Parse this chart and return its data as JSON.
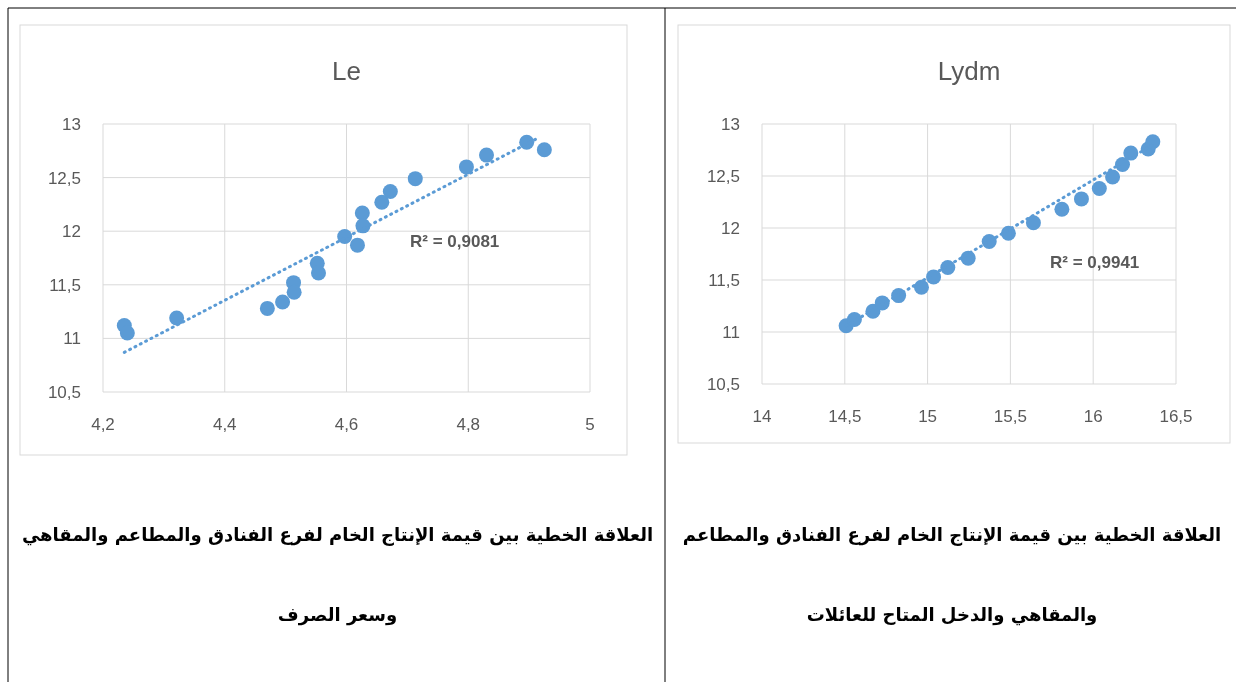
{
  "chart_data": [
    {
      "type": "scatter",
      "title": "Le",
      "grid": true,
      "xlim": [
        4.2,
        5
      ],
      "xticks": [
        {
          "value": 4.2,
          "label": "4,2"
        },
        {
          "value": 4.4,
          "label": "4,4"
        },
        {
          "value": 4.6,
          "label": "4,6"
        },
        {
          "value": 4.8,
          "label": "4,8"
        },
        5
      ],
      "ylim": [
        10.5,
        13
      ],
      "yticks": [
        {
          "value": 10.5,
          "label": "10,5"
        },
        11,
        {
          "value": 11.5,
          "label": "11,5"
        },
        12,
        {
          "value": 12.5,
          "label": "12,5"
        },
        13
      ],
      "series": [
        {
          "marker": "circle",
          "color": "#5b9bd5",
          "x": [
            4.235,
            4.24,
            4.321,
            4.47,
            4.495,
            4.513,
            4.514,
            4.552,
            4.554,
            4.597,
            4.618,
            4.626,
            4.627,
            4.658,
            4.672,
            4.713,
            4.797,
            4.83,
            4.896,
            4.925
          ],
          "values": [
            11.12,
            11.05,
            11.19,
            11.28,
            11.34,
            11.52,
            11.43,
            11.7,
            11.61,
            11.95,
            11.87,
            12.17,
            12.05,
            12.27,
            12.37,
            12.49,
            12.6,
            12.71,
            12.83,
            12.76
          ]
        },
        {
          "type": "line",
          "color": "#5b9bd5",
          "line_style": "dotted",
          "x": [
            4.235,
            4.915
          ],
          "values": [
            10.87,
            12.87
          ]
        }
      ],
      "annotations": [
        "R² = 0,9081",
        "العلاقة الخطية بين قيمة الإنتاج الخام لفرع الفنادق والمطاعم والمقاهي وسعر الصرف"
      ]
    },
    {
      "type": "scatter",
      "title": "Lydm",
      "grid": true,
      "xlim": [
        14,
        16.5
      ],
      "xticks": [
        14,
        {
          "value": 14.5,
          "label": "14,5"
        },
        15,
        {
          "value": 15.5,
          "label": "15,5"
        },
        16,
        {
          "value": 16.5,
          "label": "16,5"
        }
      ],
      "ylim": [
        10.5,
        13
      ],
      "yticks": [
        {
          "value": 10.5,
          "label": "10,5"
        },
        11,
        {
          "value": 11.5,
          "label": "11,5"
        },
        12,
        {
          "value": 12.5,
          "label": "12,5"
        },
        13
      ],
      "series": [
        {
          "marker": "circle",
          "color": "#5b9bd5",
          "x": [
            14.508,
            14.558,
            14.67,
            14.726,
            14.825,
            14.963,
            15.036,
            15.122,
            15.245,
            15.372,
            15.488,
            15.639,
            15.811,
            15.929,
            16.037,
            16.117,
            16.177,
            16.227,
            16.332,
            16.36
          ],
          "values": [
            11.06,
            11.12,
            11.2,
            11.28,
            11.35,
            11.43,
            11.53,
            11.62,
            11.71,
            11.87,
            11.95,
            12.05,
            12.18,
            12.28,
            12.38,
            12.49,
            12.61,
            12.72,
            12.76,
            12.83
          ]
        },
        {
          "type": "line",
          "color": "#5b9bd5",
          "line_style": "dotted",
          "x": [
            14.508,
            16.36
          ],
          "values": [
            11.06,
            12.8
          ]
        }
      ],
      "annotations": [
        "R² = 0,9941",
        "العلاقة الخطية بين قيمة الإنتاج الخام لفرع الفنادق والمطاعم والمقاهي والدخل المتاح للعائلات"
      ]
    }
  ]
}
